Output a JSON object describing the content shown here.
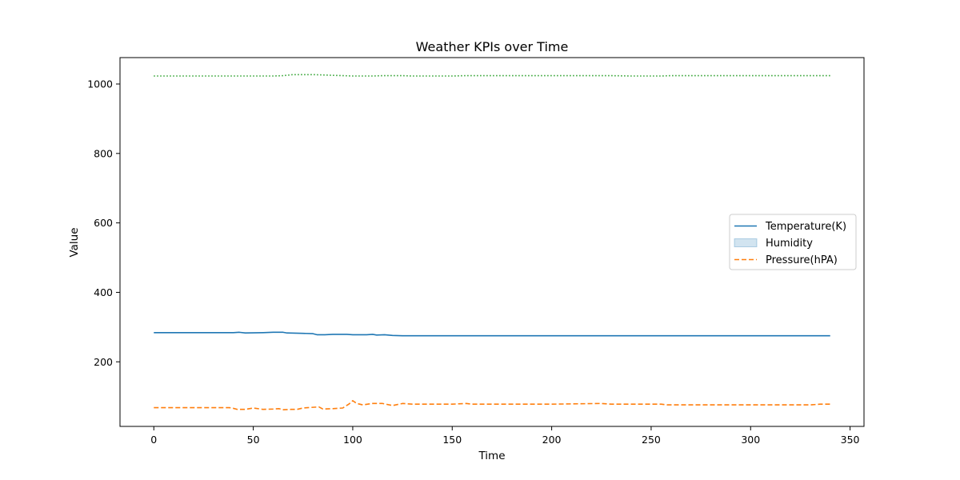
{
  "chart_data": {
    "type": "line",
    "title": "Weather KPIs over Time",
    "xlabel": "Time",
    "ylabel": "Value",
    "xlim": [
      -17,
      357
    ],
    "ylim": [
      14,
      1076
    ],
    "xticks": [
      0,
      50,
      100,
      150,
      200,
      250,
      300,
      350
    ],
    "yticks": [
      200,
      400,
      600,
      800,
      1000
    ],
    "grid": false,
    "legend_position": "center-right",
    "series": [
      {
        "name": "Temperature(K)",
        "color": "#1f77b4",
        "style": "solid",
        "points": [
          [
            0,
            284
          ],
          [
            20,
            284
          ],
          [
            40,
            284
          ],
          [
            43,
            285
          ],
          [
            46,
            283
          ],
          [
            55,
            284
          ],
          [
            60,
            285
          ],
          [
            65,
            285
          ],
          [
            67,
            283
          ],
          [
            75,
            282
          ],
          [
            80,
            281
          ],
          [
            82,
            278
          ],
          [
            86,
            278
          ],
          [
            90,
            279
          ],
          [
            97,
            279
          ],
          [
            100,
            278
          ],
          [
            107,
            278
          ],
          [
            110,
            279
          ],
          [
            112,
            277
          ],
          [
            116,
            278
          ],
          [
            120,
            276
          ],
          [
            125,
            275
          ],
          [
            130,
            275
          ],
          [
            200,
            275
          ],
          [
            300,
            275
          ],
          [
            340,
            275
          ]
        ]
      },
      {
        "name": "Humidity",
        "color": "#1f77b4",
        "style": "area",
        "points": []
      },
      {
        "name": "Pressure(hPA)",
        "color": "#ff7f0e",
        "style": "dashed",
        "points": [
          [
            0,
            68
          ],
          [
            38,
            68
          ],
          [
            40,
            66
          ],
          [
            42,
            63
          ],
          [
            46,
            63
          ],
          [
            50,
            67
          ],
          [
            55,
            63
          ],
          [
            60,
            64
          ],
          [
            63,
            65
          ],
          [
            65,
            62
          ],
          [
            69,
            63
          ],
          [
            72,
            63
          ],
          [
            75,
            67
          ],
          [
            80,
            69
          ],
          [
            83,
            70
          ],
          [
            85,
            64
          ],
          [
            90,
            65
          ],
          [
            95,
            67
          ],
          [
            98,
            78
          ],
          [
            100,
            88
          ],
          [
            102,
            80
          ],
          [
            105,
            76
          ],
          [
            110,
            80
          ],
          [
            115,
            80
          ],
          [
            120,
            74
          ],
          [
            125,
            80
          ],
          [
            130,
            78
          ],
          [
            150,
            78
          ],
          [
            157,
            80
          ],
          [
            160,
            78
          ],
          [
            200,
            78
          ],
          [
            225,
            80
          ],
          [
            230,
            78
          ],
          [
            255,
            78
          ],
          [
            258,
            76
          ],
          [
            300,
            76
          ],
          [
            330,
            76
          ],
          [
            335,
            78
          ],
          [
            340,
            78
          ]
        ]
      },
      {
        "name": "",
        "color": "#2ca02c",
        "style": "dotted",
        "points": [
          [
            0,
            1023
          ],
          [
            40,
            1023
          ],
          [
            60,
            1023
          ],
          [
            65,
            1024
          ],
          [
            70,
            1027
          ],
          [
            80,
            1027
          ],
          [
            85,
            1026
          ],
          [
            95,
            1024
          ],
          [
            100,
            1023
          ],
          [
            110,
            1023
          ],
          [
            115,
            1024
          ],
          [
            120,
            1024
          ],
          [
            125,
            1024
          ],
          [
            130,
            1023
          ],
          [
            140,
            1023
          ],
          [
            150,
            1023
          ],
          [
            157,
            1024
          ],
          [
            200,
            1024
          ],
          [
            230,
            1024
          ],
          [
            240,
            1023
          ],
          [
            255,
            1023
          ],
          [
            260,
            1024
          ],
          [
            300,
            1024
          ],
          [
            340,
            1024
          ]
        ]
      }
    ]
  }
}
